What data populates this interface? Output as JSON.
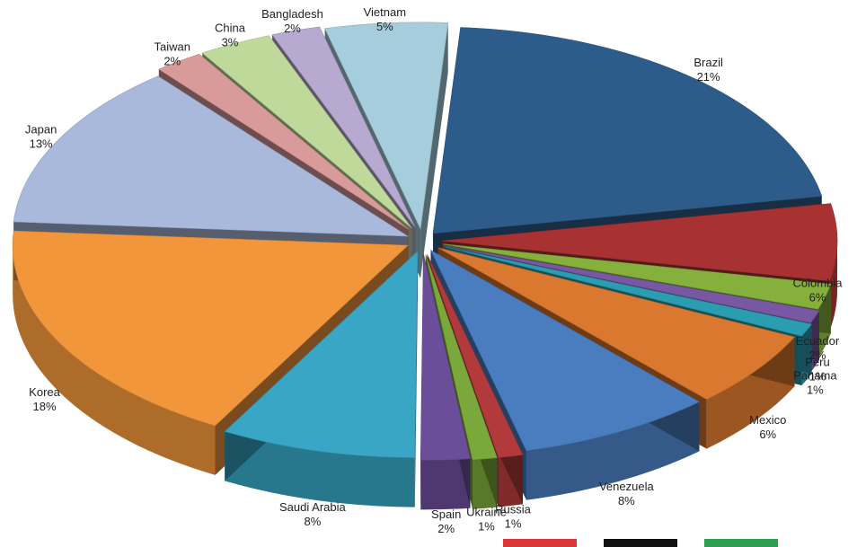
{
  "chart_data": {
    "type": "pie",
    "title": "",
    "style": "3d-exploded",
    "slices": [
      {
        "label": "Brazil",
        "value": 21,
        "value_label": "21%",
        "color": "#2E5C8A"
      },
      {
        "label": "Colombia",
        "value": 6,
        "value_label": "6%",
        "color": "#A83232"
      },
      {
        "label": "Ecuador",
        "value": 2,
        "value_label": "2%",
        "color": "#86B03C"
      },
      {
        "label": "Peru",
        "value": 1,
        "value_label": "1%",
        "color": "#7857A3"
      },
      {
        "label": "Panama",
        "value": 1,
        "value_label": "1%",
        "color": "#2B9DB0"
      },
      {
        "label": "Mexico",
        "value": 6,
        "value_label": "6%",
        "color": "#D9782E"
      },
      {
        "label": "Venezuela",
        "value": 8,
        "value_label": "8%",
        "color": "#4A7DBF"
      },
      {
        "label": "Russia",
        "value": 1,
        "value_label": "1%",
        "color": "#B23A3A"
      },
      {
        "label": "Ukraine",
        "value": 1,
        "value_label": "1%",
        "color": "#7AA83A"
      },
      {
        "label": "Spain",
        "value": 2,
        "value_label": "2%",
        "color": "#6B4E9A"
      },
      {
        "label": "Saudi Arabia",
        "value": 8,
        "value_label": "8%",
        "color": "#38A6C4"
      },
      {
        "label": "Korea",
        "value": 18,
        "value_label": "18%",
        "color": "#F2963C"
      },
      {
        "label": "Japan",
        "value": 13,
        "value_label": "13%",
        "color": "#A9B9DC"
      },
      {
        "label": "Taiwan",
        "value": 2,
        "value_label": "2%",
        "color": "#D99A9A"
      },
      {
        "label": "China",
        "value": 3,
        "value_label": "3%",
        "color": "#BFD99A"
      },
      {
        "label": "Bangladesh",
        "value": 2,
        "value_label": "2%",
        "color": "#B7A9CF"
      },
      {
        "label": "Vietnam",
        "value": 5,
        "value_label": "5%",
        "color": "#A6CDDB"
      }
    ],
    "legend": {
      "placement": "bottom-right",
      "entries": [
        {
          "color": "#D93838"
        },
        {
          "color": "#111111"
        },
        {
          "color": "#2E9E55"
        }
      ]
    }
  }
}
